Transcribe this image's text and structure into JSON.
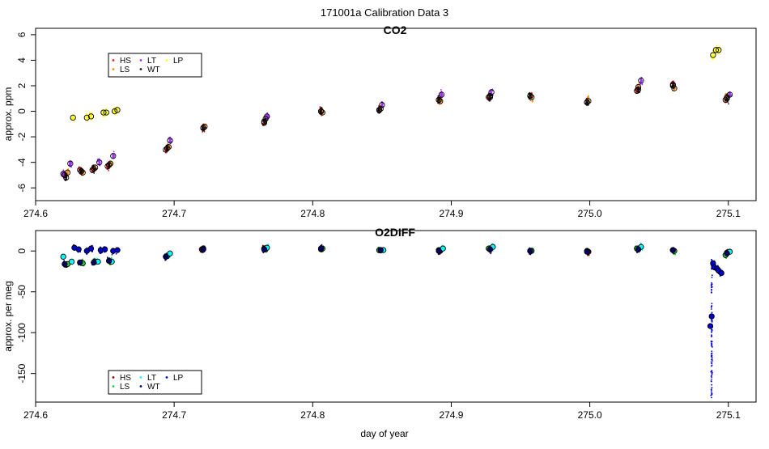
{
  "figure": {
    "title": "171001a   Calibration Data 3",
    "xlabel": "day of year"
  },
  "colors": {
    "HS": "#e41a1c",
    "LS": "#ff8c00",
    "LT": "#9b30ff",
    "WT": "#1a1a1a",
    "LP": "#ffff00",
    "o2_HS": "#8b0000",
    "o2_LS": "#22cc44",
    "o2_LT": "#00ffff",
    "o2_WT": "#000066",
    "o2_LP": "#0000cd"
  },
  "chart_data": [
    {
      "type": "scatter",
      "title": "CO2",
      "xlabel": "",
      "ylabel": "approx. ppm",
      "xlim": [
        274.6,
        275.12
      ],
      "ylim": [
        -7,
        6.5
      ],
      "xticks": [
        "274.6",
        "274.7",
        "274.8",
        "274.9",
        "275.0",
        "275.1"
      ],
      "yticks": [
        "-6",
        "-4",
        "-2",
        "0",
        "2",
        "4",
        "6"
      ],
      "legend": {
        "position": "top-left",
        "entries": [
          "HS",
          "LS",
          "LT",
          "WT",
          "LP"
        ]
      },
      "series": [
        {
          "name": "HS",
          "x": [
            274.621,
            274.632,
            274.641,
            274.652,
            274.694,
            274.721,
            274.765,
            274.806,
            274.848,
            274.891,
            274.927,
            274.957,
            274.998,
            275.034,
            275.06,
            275.098
          ],
          "y": [
            -5.0,
            -4.6,
            -4.6,
            -4.3,
            -3.0,
            -1.3,
            -0.9,
            0.0,
            0.1,
            0.9,
            1.1,
            1.2,
            0.7,
            1.6,
            2.1,
            0.9
          ]
        },
        {
          "name": "LS",
          "x": [
            274.623,
            274.634,
            274.643,
            274.654,
            274.696,
            274.722,
            274.766,
            274.807,
            274.849,
            274.892,
            274.928,
            274.958,
            274.999,
            275.035,
            275.061,
            275.099
          ],
          "y": [
            -4.8,
            -4.8,
            -4.4,
            -4.1,
            -2.8,
            -1.2,
            -0.6,
            -0.1,
            0.2,
            0.8,
            1.2,
            1.1,
            0.8,
            1.9,
            1.8,
            1.1
          ]
        },
        {
          "name": "LT",
          "x": [
            274.62,
            274.625,
            274.646,
            274.656,
            274.697,
            274.767,
            274.85,
            274.893,
            274.929,
            275.037,
            275.101
          ],
          "y": [
            -4.9,
            -4.1,
            -4.0,
            -3.5,
            -2.3,
            -0.4,
            0.5,
            1.3,
            1.5,
            2.4,
            1.3
          ]
        },
        {
          "name": "WT",
          "x": [
            274.622,
            274.633,
            274.642,
            274.653,
            274.695,
            274.721,
            274.765,
            274.806,
            274.848,
            274.891,
            274.928,
            274.957,
            274.998,
            275.035,
            275.06,
            275.099
          ],
          "y": [
            -5.2,
            -4.7,
            -4.5,
            -4.2,
            -2.9,
            -1.3,
            -0.8,
            0.0,
            0.1,
            0.9,
            1.1,
            1.2,
            0.7,
            1.7,
            2.0,
            1.0
          ]
        },
        {
          "name": "LP",
          "x": [
            274.627,
            274.637,
            274.64,
            274.649,
            274.651,
            274.657,
            274.659,
            275.089,
            275.091,
            275.093
          ],
          "y": [
            -0.5,
            -0.5,
            -0.4,
            -0.1,
            -0.1,
            0.0,
            0.1,
            4.4,
            4.8,
            4.8
          ]
        }
      ]
    },
    {
      "type": "scatter",
      "title": "O2DIFF",
      "xlabel": "day of year",
      "ylabel": "approx. per meg",
      "xlim": [
        274.6,
        275.12
      ],
      "ylim": [
        -185,
        25
      ],
      "xticks": [
        "274.6",
        "274.7",
        "274.8",
        "274.9",
        "275.0",
        "275.1"
      ],
      "yticks": [
        "-150",
        "-100",
        "-50",
        "0"
      ],
      "legend": {
        "position": "bottom-left",
        "entries": [
          "HS",
          "LS",
          "LT",
          "WT",
          "LP"
        ]
      },
      "series": [
        {
          "name": "HS",
          "x": [
            274.622,
            274.633,
            274.642,
            274.653,
            274.694,
            274.72,
            274.765,
            274.806,
            274.849,
            274.892,
            274.928,
            274.957,
            274.999,
            275.035,
            275.06,
            275.099
          ],
          "y": [
            -17,
            -14,
            -14,
            -12,
            -7,
            2,
            3,
            2,
            1,
            0,
            2,
            0,
            -1,
            2,
            1,
            -2
          ]
        },
        {
          "name": "LS",
          "x": [
            274.623,
            274.634,
            274.643,
            274.654,
            274.695,
            274.721,
            274.766,
            274.807,
            274.848,
            274.891,
            274.927,
            274.958,
            274.998,
            275.034,
            275.061,
            275.098
          ],
          "y": [
            -16,
            -15,
            -13,
            -13,
            -6,
            3,
            2,
            3,
            1,
            1,
            3,
            0,
            0,
            3,
            0,
            -5
          ]
        },
        {
          "name": "LT",
          "x": [
            274.62,
            274.626,
            274.645,
            274.655,
            274.697,
            274.767,
            274.851,
            274.894,
            274.93,
            275.037,
            275.101
          ],
          "y": [
            -7,
            -13,
            -13,
            -13,
            -3,
            4,
            1,
            3,
            5,
            5,
            -1
          ]
        },
        {
          "name": "WT",
          "x": [
            274.621,
            274.632,
            274.642,
            274.653,
            274.694,
            274.721,
            274.765,
            274.806,
            274.849,
            274.891,
            274.928,
            274.957,
            274.998,
            275.035,
            275.06,
            275.099
          ],
          "y": [
            -16,
            -14,
            -14,
            -12,
            -7,
            2,
            2,
            3,
            1,
            0,
            2,
            0,
            -1,
            2,
            1,
            -3
          ]
        },
        {
          "name": "LP",
          "x": [
            274.628,
            274.631,
            274.637,
            274.64,
            274.647,
            274.65,
            274.656,
            274.659,
            275.087,
            275.088,
            275.089,
            275.09,
            275.092,
            275.093,
            275.095
          ],
          "y": [
            4,
            2,
            0,
            3,
            1,
            2,
            0,
            1,
            -92,
            -80,
            -15,
            -20,
            -22,
            -24,
            -27
          ]
        }
      ]
    }
  ]
}
